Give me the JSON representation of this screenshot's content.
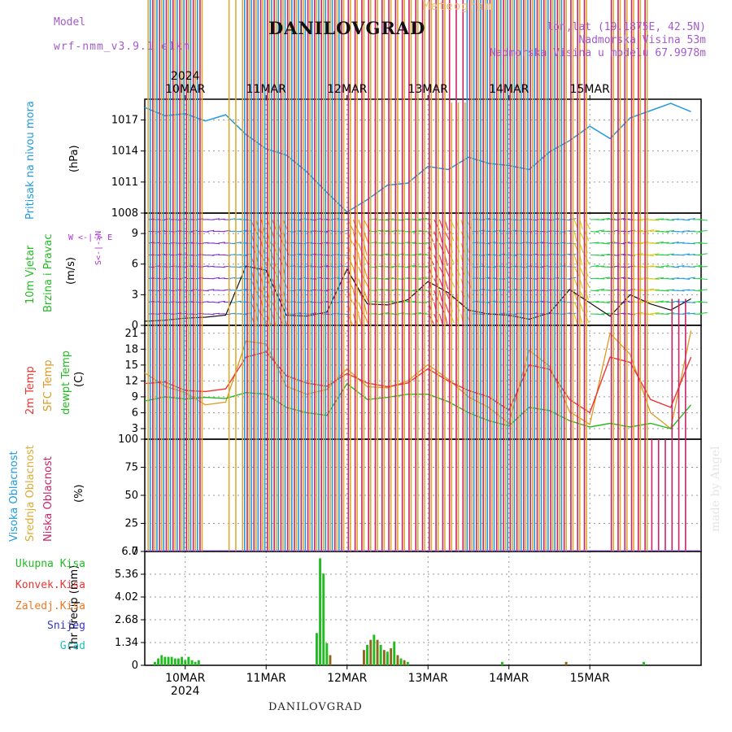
{
  "header": {
    "model_label": "Model",
    "model_name": "wrf-nmm_v3.9.1 e1km",
    "product": "Meteogram",
    "location": "DANILOVGRAD",
    "lonlat": "lon,lat (19.1875E, 42.5N)",
    "elevation": "Nadmorska Visina 53m",
    "model_elevation": "Nadmorska Visina u modelu 67.9978m",
    "footer": "DANILOVGRAD",
    "credit": "made by Angel"
  },
  "dates": {
    "year": "2024",
    "labels": [
      "10MAR",
      "11MAR",
      "12MAR",
      "13MAR",
      "14MAR",
      "15MAR"
    ]
  },
  "colors": {
    "pressure": "#1e9be0",
    "wind_label": "#22bb22",
    "wind_dir_label": "#aa33cc",
    "temp2m": "#ee3333",
    "sfc": "#dd9922",
    "dewpt": "#22bb22",
    "high_cloud": "#1e9be0",
    "mid_cloud": "#ddaa33",
    "low_cloud": "#cc2266",
    "ukupna": "#22bb22",
    "konvek": "#ee3333",
    "zaledj": "#ee7722",
    "snijeg": "#3333cc",
    "grad": "#22bbbb"
  },
  "panels": {
    "pressure": {
      "label1": "Pritisak na nivou mora",
      "label2": "(hPa)",
      "ticks": [
        "1017",
        "1014",
        "1011",
        "1008"
      ]
    },
    "wind": {
      "label1": "10m Vjetar",
      "label2": "Brzina i Pravac",
      "label3": "(m/s)",
      "dir_label": "W <-|-> E",
      "ns_label": "S<-|->N",
      "ticks": [
        "9",
        "6",
        "3",
        "0"
      ]
    },
    "temp": {
      "label1": "2m Temp",
      "label2": "SFC Temp",
      "label3": "dewpt Temp",
      "label4": "(C)",
      "ticks": [
        "21",
        "18",
        "15",
        "12",
        "9",
        "6",
        "3"
      ]
    },
    "cloud": {
      "label1": "Visoka Oblacnost",
      "label2": "Srednja Oblacnost",
      "label3": "Niska Oblacnost",
      "label4": "(%)",
      "ticks": [
        "100",
        "75",
        "50",
        "25",
        "0"
      ]
    },
    "precip": {
      "label1": "1hr Precip (mm)",
      "ticks": [
        "6.7",
        "5.36",
        "4.02",
        "2.68",
        "1.34",
        "0"
      ],
      "legend": [
        "Ukupna Kisa",
        "Konvek.Kisa",
        "Zaledj.Kisa",
        "Snijeg",
        "Grad"
      ]
    }
  },
  "chart_data": [
    {
      "type": "line",
      "title": "",
      "ylabel": "Pritisak na nivou mora (hPa)",
      "ylim": [
        1008,
        1019
      ],
      "x_hours": [
        0,
        6,
        12,
        18,
        24,
        30,
        36,
        42,
        48,
        54,
        60,
        66,
        72,
        78,
        84,
        90,
        96,
        102,
        108,
        114,
        120,
        126,
        132,
        138,
        144,
        150,
        156,
        162
      ],
      "series": [
        {
          "name": "Pritisak na nivou mora",
          "values": [
            1018.2,
            1017.4,
            1017.6,
            1016.9,
            1017.5,
            1015.6,
            1014.2,
            1013.6,
            1012.0,
            1010.0,
            1008.1,
            1009.3,
            1010.7,
            1010.9,
            1012.5,
            1012.2,
            1013.4,
            1012.8,
            1012.6,
            1012.2,
            1013.9,
            1015.0,
            1016.4,
            1015.2,
            1017.2,
            1017.9,
            1018.6,
            1017.8
          ]
        }
      ]
    },
    {
      "type": "line",
      "title": "",
      "ylabel": "10m Vjetar Brzina i Pravac (m/s)",
      "ylim": [
        0,
        11
      ],
      "x_hours": [
        0,
        6,
        12,
        18,
        24,
        30,
        36,
        42,
        48,
        54,
        60,
        66,
        72,
        78,
        84,
        90,
        96,
        102,
        108,
        114,
        120,
        126,
        132,
        138,
        144,
        150,
        156,
        162
      ],
      "series": [
        {
          "name": "10m Vjetar",
          "values": [
            0.4,
            0.5,
            0.7,
            0.8,
            1.0,
            5.8,
            5.4,
            1.0,
            0.9,
            1.3,
            5.5,
            2.1,
            2.0,
            2.5,
            4.3,
            3.2,
            1.5,
            1.1,
            1.0,
            0.6,
            1.2,
            3.5,
            2.2,
            0.9,
            3.0,
            2.1,
            1.5,
            2.6
          ]
        }
      ]
    },
    {
      "type": "line",
      "title": "",
      "ylabel": "Temp (C)",
      "ylim": [
        1,
        22.5
      ],
      "x_hours": [
        0,
        6,
        12,
        18,
        24,
        30,
        36,
        42,
        48,
        54,
        60,
        66,
        72,
        78,
        84,
        90,
        96,
        102,
        108,
        114,
        120,
        126,
        132,
        138,
        144,
        150,
        156,
        162
      ],
      "series": [
        {
          "name": "2m Temp",
          "values": [
            11.5,
            11.8,
            10.2,
            10.0,
            10.5,
            16.5,
            17.5,
            13.0,
            11.6,
            11.0,
            13.4,
            11.6,
            10.9,
            11.6,
            14.3,
            12.0,
            10.2,
            9.0,
            6.5,
            15.0,
            14.2,
            8.5,
            6.0,
            16.5,
            15.5,
            8.5,
            7.0,
            16.5
          ]
        },
        {
          "name": "SFC Temp",
          "values": [
            13.5,
            11.0,
            9.8,
            7.5,
            8.0,
            19.5,
            19.0,
            11.0,
            9.5,
            10.4,
            14.3,
            10.9,
            10.7,
            12.0,
            15.1,
            12.3,
            9.0,
            7.0,
            4.0,
            17.8,
            14.8,
            6.2,
            3.8,
            21.0,
            17.0,
            6.0,
            3.0,
            21.5
          ]
        },
        {
          "name": "dewpt Temp",
          "values": [
            8.2,
            9.0,
            8.6,
            8.9,
            8.7,
            9.8,
            9.5,
            7.0,
            6.0,
            5.5,
            11.5,
            8.5,
            8.9,
            9.5,
            9.5,
            8.1,
            6.0,
            4.5,
            3.5,
            7.0,
            6.4,
            4.5,
            3.3,
            4.0,
            3.3,
            4.0,
            3.0,
            7.5
          ]
        }
      ]
    },
    {
      "type": "bar",
      "title": "",
      "ylabel": "Oblacnost (%)",
      "ylim": [
        0,
        100
      ],
      "x_hours": [
        0,
        6,
        12,
        18,
        24,
        30,
        36,
        42,
        48,
        54,
        60,
        66,
        72,
        78,
        84,
        90,
        96,
        102,
        108,
        114,
        120,
        126,
        132,
        138,
        144,
        150,
        156,
        162
      ],
      "series": [
        {
          "name": "Visoka Oblacnost",
          "values": [
            100,
            100,
            50,
            0,
            0,
            100,
            100,
            100,
            100,
            100,
            0,
            0,
            0,
            0,
            0,
            0,
            100,
            100,
            100,
            100,
            100,
            0,
            0,
            0,
            0,
            0,
            0,
            0
          ]
        },
        {
          "name": "Srednja Oblacnost",
          "values": [
            100,
            100,
            100,
            0,
            60,
            100,
            100,
            100,
            100,
            100,
            100,
            90,
            90,
            90,
            85,
            20,
            100,
            100,
            100,
            100,
            100,
            50,
            0,
            80,
            75,
            0,
            0,
            0
          ]
        },
        {
          "name": "Niska Oblacnost",
          "values": [
            100,
            100,
            100,
            0,
            0,
            100,
            100,
            100,
            100,
            90,
            30,
            60,
            60,
            60,
            40,
            30,
            100,
            100,
            100,
            100,
            70,
            40,
            0,
            60,
            60,
            10,
            15,
            0
          ]
        }
      ]
    },
    {
      "type": "bar",
      "title": "",
      "ylabel": "1hr Precip (mm)",
      "ylim": [
        0,
        6.7
      ],
      "x_hours": [
        3,
        4,
        5,
        6,
        7,
        8,
        9,
        10,
        11,
        12,
        13,
        14,
        15,
        16,
        17,
        18,
        19,
        20,
        21,
        22,
        23,
        24,
        25,
        26,
        27,
        28,
        29,
        30,
        31,
        32,
        33,
        34,
        35,
        36,
        37,
        38,
        39,
        40,
        41,
        42,
        43,
        44,
        45,
        46,
        47,
        48,
        49,
        50,
        51,
        52,
        53,
        54,
        55,
        56,
        57,
        58,
        59,
        60,
        61,
        62,
        63,
        64,
        65,
        66,
        67,
        68,
        69,
        70,
        71,
        72,
        73,
        74,
        75,
        76,
        77,
        78,
        79,
        80,
        81,
        82,
        83,
        84,
        85,
        86,
        87,
        88,
        89,
        90,
        91,
        92,
        93,
        94,
        95,
        96,
        97,
        98,
        99,
        100,
        101,
        102,
        103,
        104,
        105,
        106,
        107,
        108,
        109,
        110,
        111,
        112,
        113,
        114,
        115,
        116,
        117,
        118,
        119,
        120,
        121,
        122,
        123,
        124,
        125,
        126,
        127,
        128,
        129,
        130,
        131,
        132,
        133,
        134,
        135,
        136,
        137,
        138,
        139,
        140,
        141,
        142,
        143,
        144,
        145,
        146,
        147,
        148,
        149,
        150,
        151,
        152,
        153,
        154,
        155,
        156,
        157,
        158,
        159,
        160,
        161,
        162,
        163,
        164,
        165
      ],
      "series": [
        {
          "name": "Ukupna Kisa",
          "values": [
            0.2,
            0.4,
            0.6,
            0.5,
            0.5,
            0.5,
            0.4,
            0.4,
            0.5,
            0.3,
            0.5,
            0.3,
            0.2,
            0.3,
            0,
            0,
            0,
            0,
            0,
            0,
            0,
            0,
            0,
            0,
            0,
            0,
            0,
            0,
            0,
            0,
            0,
            0,
            0,
            0,
            0,
            0,
            0,
            0,
            0,
            0,
            0,
            0,
            0,
            0,
            0,
            0,
            0,
            0,
            0,
            0,
            0,
            0,
            0,
            0,
            0,
            0,
            0,
            0,
            0,
            0,
            0,
            0,
            0,
            0,
            0,
            0,
            0,
            0,
            0,
            0,
            0,
            0,
            0,
            0,
            0,
            0,
            0,
            0,
            0,
            0,
            0,
            0,
            0,
            0,
            0,
            0,
            0,
            0,
            0,
            0,
            0,
            0,
            0,
            0,
            0,
            0,
            0,
            0,
            0,
            0,
            0,
            0,
            0,
            0,
            0,
            0,
            0,
            0,
            0,
            0,
            0,
            0,
            0,
            0,
            0,
            0,
            0,
            0,
            0,
            0,
            0,
            0,
            0,
            0,
            0,
            0,
            0,
            0,
            0,
            0,
            0,
            0,
            0,
            0,
            0,
            0,
            0,
            0,
            0,
            0,
            0,
            0,
            0,
            0,
            0,
            0,
            0,
            0,
            0,
            0,
            0,
            0,
            0,
            0,
            0,
            0,
            0,
            0,
            0,
            0,
            0,
            0,
            0
          ]
        }
      ],
      "events": [
        {
          "name": "Ukupna Kisa",
          "hour": 51,
          "value": 1.9
        },
        {
          "name": "Ukupna Kisa",
          "hour": 52,
          "value": 6.3
        },
        {
          "name": "Ukupna Kisa",
          "hour": 53,
          "value": 5.4
        },
        {
          "name": "Ukupna Kisa",
          "hour": 54,
          "value": 1.3
        },
        {
          "name": "Ukupna Kisa",
          "hour": 55,
          "value": 0.6
        },
        {
          "name": "Ukupna Kisa",
          "hour": 65,
          "value": 0.9
        },
        {
          "name": "Ukupna Kisa",
          "hour": 66,
          "value": 1.2
        },
        {
          "name": "Ukupna Kisa",
          "hour": 67,
          "value": 1.5
        },
        {
          "name": "Ukupna Kisa",
          "hour": 68,
          "value": 1.8
        },
        {
          "name": "Ukupna Kisa",
          "hour": 69,
          "value": 1.5
        },
        {
          "name": "Ukupna Kisa",
          "hour": 70,
          "value": 1.2
        },
        {
          "name": "Ukupna Kisa",
          "hour": 71,
          "value": 0.9
        },
        {
          "name": "Ukupna Kisa",
          "hour": 72,
          "value": 0.8
        },
        {
          "name": "Ukupna Kisa",
          "hour": 73,
          "value": 1.0
        },
        {
          "name": "Ukupna Kisa",
          "hour": 74,
          "value": 1.4
        },
        {
          "name": "Ukupna Kisa",
          "hour": 75,
          "value": 0.6
        },
        {
          "name": "Ukupna Kisa",
          "hour": 76,
          "value": 0.4
        },
        {
          "name": "Ukupna Kisa",
          "hour": 77,
          "value": 0.3
        },
        {
          "name": "Ukupna Kisa",
          "hour": 78,
          "value": 0.2
        },
        {
          "name": "Ukupna Kisa",
          "hour": 106,
          "value": 0.2
        },
        {
          "name": "Ukupna Kisa",
          "hour": 125,
          "value": 0.2
        },
        {
          "name": "Ukupna Kisa",
          "hour": 148,
          "value": 0.2
        }
      ]
    }
  ]
}
